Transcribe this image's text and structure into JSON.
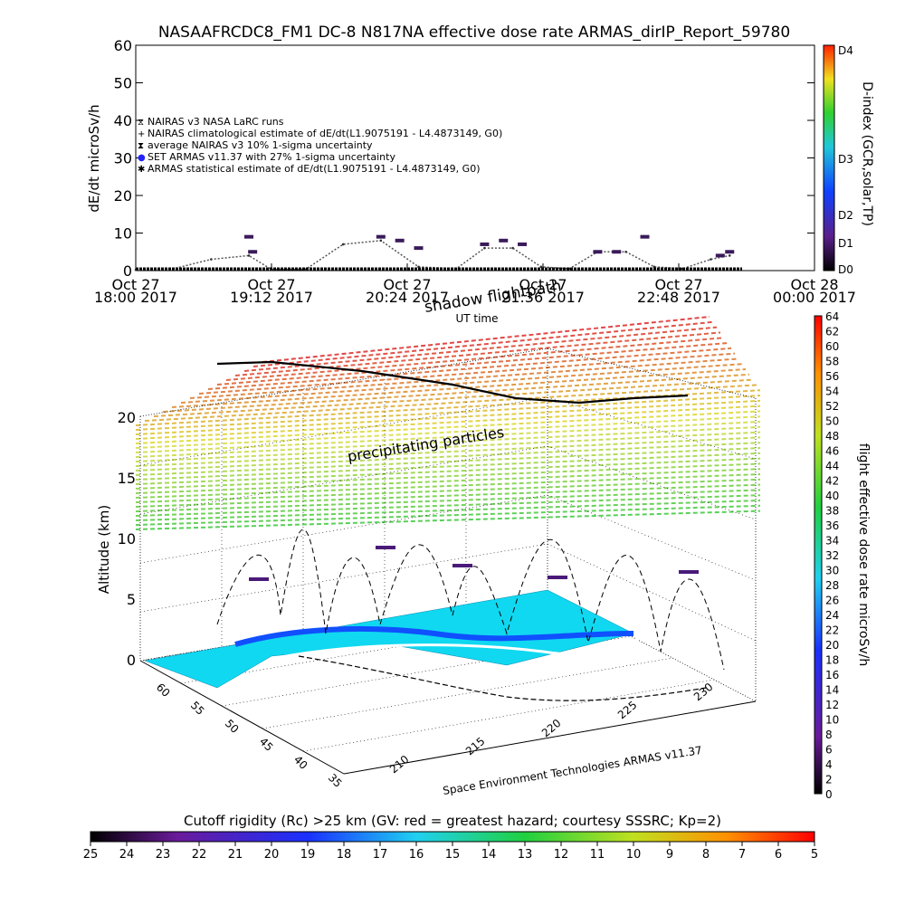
{
  "top_chart": {
    "title": "NASAAFRCDC8_FM1 DC-8   N817NA effective dose rate ARMAS_dirIP_Report_59780",
    "ylabel": "dE/dt microSv/h",
    "y_ticks": [
      "0",
      "10",
      "20",
      "30",
      "40",
      "50",
      "60"
    ],
    "x_ticks": [
      {
        "line1": "Oct 27",
        "line2": "18:00 2017"
      },
      {
        "line1": "Oct 27",
        "line2": "19:12 2017"
      },
      {
        "line1": "Oct 27",
        "line2": "20:24 2017"
      },
      {
        "line1": "Oct 27",
        "line2": "21:36 2017"
      },
      {
        "line1": "Oct 27",
        "line2": "22:48 2017"
      },
      {
        "line1": "Oct 28",
        "line2": "00:00 2017"
      }
    ],
    "xlabel": "UT time",
    "legend": [
      {
        "symbol": "⧖",
        "text": "NAIRAS v3 NASA LaRC runs",
        "color": "#000000"
      },
      {
        "symbol": "+",
        "text": "NAIRAS climatological estimate of dE/dt(L1.9075191 - L4.4873149, G0)",
        "color": "#000000"
      },
      {
        "symbol": "⧗",
        "text": "average NAIRAS v3 10% 1-sigma uncertainty",
        "color": "#000000"
      },
      {
        "symbol": "●",
        "text": "SET ARMAS v11.37 with 27% 1-sigma uncertainty",
        "color": "#2222ff"
      },
      {
        "symbol": "✱",
        "text": "ARMAS statistical estimate of dE/dt(L1.9075191 - L4.4873149, G0)",
        "color": "#000000"
      }
    ],
    "dindex_label": "D-index (GCR,solar,TP)",
    "dindex_ticks": [
      "D0",
      "D1",
      "D2",
      "D3",
      "D4"
    ]
  },
  "chart_data": [
    {
      "type": "line",
      "title": "NASAAFRCDC8_FM1 DC-8   N817NA effective dose rate ARMAS_dirIP_Report_59780",
      "xlabel": "UT time",
      "ylabel": "dE/dt microSv/h",
      "ylim": [
        0,
        60
      ],
      "series": [
        {
          "name": "NAIRAS v3 NASA LaRC runs",
          "x": [
            "18:00",
            "18:20",
            "18:40",
            "19:00",
            "19:12",
            "19:30",
            "19:50",
            "20:10",
            "20:30",
            "20:50",
            "21:05",
            "21:20",
            "21:35",
            "21:50",
            "22:05",
            "22:20",
            "22:35",
            "22:50",
            "23:05",
            "23:15"
          ],
          "values": [
            0.2,
            0.5,
            3,
            4,
            0.3,
            0.3,
            7,
            8,
            1,
            0.5,
            6,
            6,
            1,
            0.5,
            5,
            5,
            1,
            0.5,
            3,
            4
          ]
        },
        {
          "name": "ARMAS statistical estimate of dE/dt(L1.9075191 - L4.4873149, G0)",
          "x": [
            "19:00",
            "19:02",
            "20:10",
            "20:20",
            "20:30",
            "21:05",
            "21:15",
            "21:25",
            "22:05",
            "22:15",
            "22:30",
            "23:10",
            "23:15"
          ],
          "values": [
            9,
            5,
            9,
            8,
            6,
            7,
            8,
            7,
            5,
            5,
            9,
            4,
            5
          ]
        }
      ]
    },
    {
      "type": "scatter",
      "title": "",
      "zlabel": "Altitude (km)",
      "z_ticks": [
        "0",
        "5",
        "10",
        "15",
        "20"
      ],
      "y_ticks": [
        "35",
        "40",
        "45",
        "50",
        "55",
        "60"
      ],
      "x_ticks": [
        "210",
        "215",
        "220",
        "225",
        "230"
      ],
      "colorbar_label": "flight effective dose rate microSv/h",
      "colorbar_ticks": [
        "0",
        "2",
        "4",
        "6",
        "8",
        "10",
        "12",
        "14",
        "16",
        "18",
        "20",
        "22",
        "24",
        "26",
        "28",
        "30",
        "32",
        "34",
        "36",
        "38",
        "40",
        "42",
        "44",
        "46",
        "48",
        "50",
        "52",
        "54",
        "56",
        "58",
        "60",
        "62",
        "64"
      ],
      "annotations": [
        "shadow flightpath",
        "precipitating particles"
      ]
    }
  ],
  "cutoff": {
    "label": "Cutoff rigidity (Rc) >25 km (GV: red = greatest hazard; courtesy SSSRC; Kp=2)",
    "ticks": [
      "25",
      "24",
      "23",
      "22",
      "21",
      "20",
      "19",
      "18",
      "17",
      "16",
      "15",
      "14",
      "13",
      "12",
      "11",
      "10",
      "9",
      "8",
      "7",
      "6",
      "5"
    ]
  },
  "credit": "Space Environment Technologies ARMAS v11.37"
}
